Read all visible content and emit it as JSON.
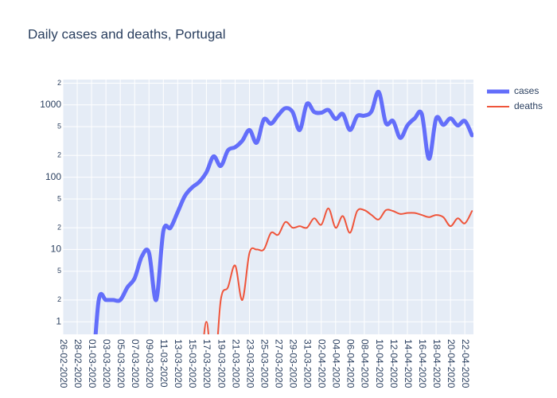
{
  "chart_data": {
    "type": "line",
    "title": "Daily cases and deaths, Portugal",
    "x": [
      "26-02-2020",
      "27-02-2020",
      "28-02-2020",
      "29-02-2020",
      "01-03-2020",
      "02-03-2020",
      "03-03-2020",
      "04-03-2020",
      "05-03-2020",
      "06-03-2020",
      "07-03-2020",
      "08-03-2020",
      "09-03-2020",
      "10-03-2020",
      "11-03-2020",
      "12-03-2020",
      "13-03-2020",
      "14-03-2020",
      "15-03-2020",
      "16-03-2020",
      "17-03-2020",
      "18-03-2020",
      "19-03-2020",
      "20-03-2020",
      "21-03-2020",
      "22-03-2020",
      "23-03-2020",
      "24-03-2020",
      "25-03-2020",
      "26-03-2020",
      "27-03-2020",
      "28-03-2020",
      "29-03-2020",
      "30-03-2020",
      "31-03-2020",
      "01-04-2020",
      "02-04-2020",
      "03-04-2020",
      "04-04-2020",
      "05-04-2020",
      "06-04-2020",
      "07-04-2020",
      "08-04-2020",
      "09-04-2020",
      "10-04-2020",
      "11-04-2020",
      "12-04-2020",
      "13-04-2020",
      "14-04-2020",
      "15-04-2020",
      "16-04-2020",
      "17-04-2020",
      "18-04-2020",
      "19-04-2020",
      "20-04-2020",
      "21-04-2020",
      "22-04-2020",
      "23-04-2020"
    ],
    "series": [
      {
        "name": "cases",
        "color": "#636efa",
        "width": 5,
        "values": [
          0,
          0,
          0,
          0,
          0,
          2,
          2,
          2,
          2,
          3,
          4,
          8,
          9,
          2,
          18,
          20,
          33,
          55,
          72,
          86,
          117,
          194,
          143,
          235,
          260,
          320,
          450,
          300,
          630,
          550,
          720,
          900,
          800,
          450,
          1035,
          800,
          780,
          850,
          640,
          750,
          450,
          700,
          710,
          815,
          1516,
          560,
          600,
          350,
          520,
          650,
          750,
          180,
          650,
          530,
          650,
          520,
          600,
          380
        ]
      },
      {
        "name": "deaths",
        "color": "#EF553B",
        "width": 2,
        "values": [
          0,
          0,
          0,
          0,
          0,
          0,
          0,
          0,
          0,
          0,
          0,
          0,
          0,
          0,
          0,
          0,
          0,
          0,
          0,
          0,
          1,
          0,
          2,
          3,
          6,
          2,
          9,
          10,
          10,
          17,
          16,
          24,
          20,
          21,
          20,
          27,
          22,
          37,
          20,
          29,
          17,
          34,
          35,
          30,
          26,
          35,
          34,
          31,
          32,
          32,
          30,
          28,
          30,
          28,
          21,
          27,
          23,
          34
        ]
      }
    ],
    "xticks": [
      "26-02-2020",
      "28-02-2020",
      "01-03-2020",
      "03-03-2020",
      "05-03-2020",
      "07-03-2020",
      "09-03-2020",
      "11-03-2020",
      "13-03-2020",
      "15-03-2020",
      "17-03-2020",
      "19-03-2020",
      "21-03-2020",
      "23-03-2020",
      "25-03-2020",
      "27-03-2020",
      "29-03-2020",
      "31-03-2020",
      "02-04-2020",
      "04-04-2020",
      "06-04-2020",
      "08-04-2020",
      "10-04-2020",
      "12-04-2020",
      "14-04-2020",
      "16-04-2020",
      "18-04-2020",
      "20-04-2020",
      "22-04-2020"
    ],
    "log_y": true,
    "ylim": [
      0.67,
      2240
    ],
    "yticks": [
      1,
      {
        "value": 2,
        "label": "2"
      },
      {
        "value": 5,
        "label": "5"
      },
      10,
      {
        "value": 20,
        "label": "2"
      },
      {
        "value": 50,
        "label": "5"
      },
      100,
      {
        "value": 200,
        "label": "2"
      },
      {
        "value": 500,
        "label": "5"
      },
      1000,
      {
        "value": 2000,
        "label": "2"
      }
    ],
    "grid": true,
    "legend": "right"
  }
}
